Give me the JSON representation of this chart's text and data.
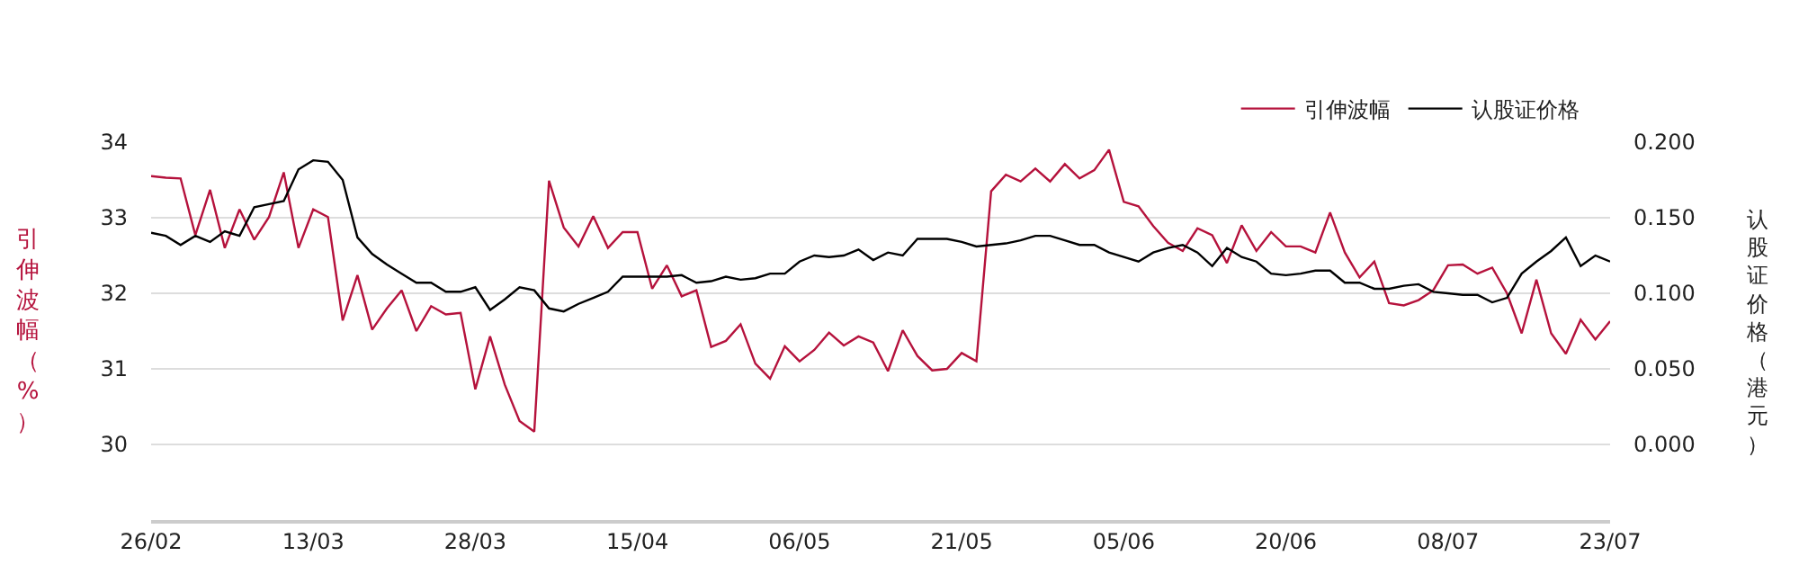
{
  "chart_data": {
    "type": "line",
    "categories": [
      "26/02",
      null,
      null,
      null,
      null,
      null,
      null,
      null,
      null,
      null,
      null,
      "13/03",
      null,
      null,
      null,
      null,
      null,
      null,
      null,
      null,
      null,
      null,
      "28/03",
      null,
      null,
      null,
      null,
      null,
      null,
      null,
      null,
      null,
      null,
      "15/04",
      null,
      null,
      null,
      null,
      null,
      null,
      null,
      null,
      null,
      null,
      "06/05",
      null,
      null,
      null,
      null,
      null,
      null,
      null,
      null,
      null,
      null,
      "21/05",
      null,
      null,
      null,
      null,
      null,
      null,
      null,
      null,
      null,
      null,
      "05/06",
      null,
      null,
      null,
      null,
      null,
      null,
      null,
      null,
      null,
      null,
      "20/06",
      null,
      null,
      null,
      null,
      null,
      null,
      null,
      null,
      null,
      null,
      "08/07",
      null,
      null,
      null,
      null,
      null,
      null,
      null,
      null,
      null,
      null,
      "23/07"
    ],
    "series": [
      {
        "name": "引伸波幅",
        "color": "#b5123c",
        "values": [
          33.55,
          33.53,
          33.52,
          32.77,
          33.37,
          32.6,
          33.11,
          32.71,
          33.01,
          33.6,
          32.6,
          33.11,
          33.01,
          31.64,
          32.24,
          31.52,
          31.8,
          32.04,
          31.5,
          31.83,
          31.72,
          31.74,
          30.73,
          31.43,
          30.79,
          30.31,
          30.17,
          33.49,
          32.87,
          32.62,
          33.02,
          32.6,
          32.81,
          32.81,
          32.06,
          32.37,
          31.96,
          32.04,
          31.29,
          31.37,
          31.59,
          31.07,
          30.87,
          31.3,
          31.1,
          31.25,
          31.48,
          31.31,
          31.43,
          31.35,
          30.97,
          31.51,
          31.17,
          30.98,
          31.0,
          31.21,
          31.1,
          33.35,
          33.57,
          33.48,
          33.65,
          33.48,
          33.71,
          33.52,
          33.63,
          33.9,
          33.21,
          33.15,
          32.89,
          32.67,
          32.56,
          32.86,
          32.77,
          32.4,
          32.9,
          32.56,
          32.81,
          32.62,
          32.62,
          32.54,
          33.07,
          32.54,
          32.21,
          32.42,
          31.87,
          31.84,
          31.91,
          32.04,
          32.37,
          32.38,
          32.26,
          32.34,
          32.0,
          31.47,
          32.18,
          31.47,
          31.2,
          31.65,
          31.39,
          31.63
        ]
      },
      {
        "name": "认股证价格",
        "color": "#000000",
        "axis": "y2",
        "values": [
          0.14,
          0.138,
          0.132,
          0.138,
          0.134,
          0.141,
          0.138,
          0.157,
          0.159,
          0.161,
          0.182,
          0.188,
          0.187,
          0.175,
          0.137,
          0.126,
          0.119,
          0.113,
          0.107,
          0.107,
          0.101,
          0.101,
          0.104,
          0.089,
          0.096,
          0.104,
          0.102,
          0.09,
          0.088,
          0.093,
          0.097,
          0.101,
          0.111,
          0.111,
          0.111,
          0.111,
          0.112,
          0.107,
          0.108,
          0.111,
          0.109,
          0.11,
          0.113,
          0.113,
          0.121,
          0.125,
          0.124,
          0.125,
          0.129,
          0.122,
          0.127,
          0.125,
          0.136,
          0.136,
          0.136,
          0.134,
          0.131,
          0.132,
          0.133,
          0.135,
          0.138,
          0.138,
          0.135,
          0.132,
          0.132,
          0.127,
          0.124,
          0.121,
          0.127,
          0.13,
          0.132,
          0.127,
          0.118,
          0.13,
          0.124,
          0.121,
          0.113,
          0.112,
          0.113,
          0.115,
          0.115,
          0.107,
          0.107,
          0.103,
          0.103,
          0.105,
          0.106,
          0.101,
          0.1,
          0.099,
          0.099,
          0.094,
          0.097,
          0.113,
          0.121,
          0.128,
          0.137,
          0.118,
          0.125,
          0.121
        ]
      }
    ],
    "ylabel": "引伸波幅（%）",
    "y2label": "认股证价格（港元）",
    "ylim": [
      29,
      34
    ],
    "yticks": [
      30,
      31,
      32,
      33,
      34
    ],
    "y2lim": [
      -0.05,
      0.2
    ],
    "y2ticks": [
      {
        "value": 0,
        "label": "0.000"
      },
      {
        "value": 0.05,
        "label": "0.050"
      },
      {
        "value": 0.1,
        "label": "0.100"
      },
      {
        "value": 0.15,
        "label": "0.150"
      },
      {
        "value": 0.2,
        "label": "0.200"
      }
    ],
    "grid": "y",
    "legend": "top right",
    "marker": "none",
    "line_style": "solid"
  }
}
